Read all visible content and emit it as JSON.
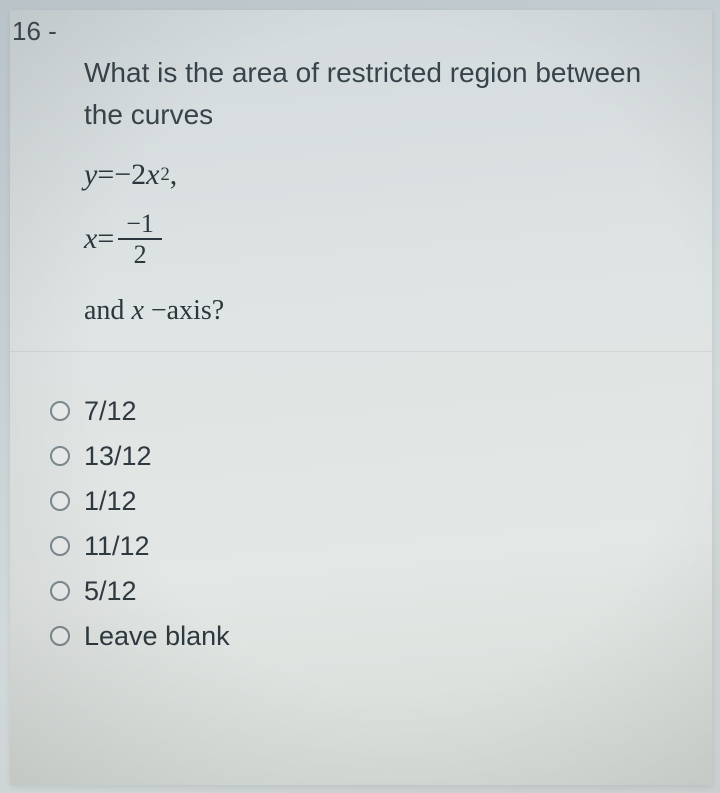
{
  "question_number": "16 -",
  "question_text_line1": "What is the area of restricted region between",
  "question_text_line2": "the curves",
  "eq1_lhs": "y",
  "eq1_eq": " = ",
  "eq1_rhs_coef": "−2",
  "eq1_rhs_var": "x",
  "eq1_rhs_exp": "2",
  "eq1_tail": " ,",
  "eq2_lhs": "x",
  "eq2_eq": " = ",
  "eq2_frac_num": "−1",
  "eq2_frac_den": "2",
  "and_prefix": "and ",
  "and_var": "x ",
  "and_dash": "−",
  "and_suffix": "axis?",
  "options": {
    "a": "7/12",
    "b": "13/12",
    "c": "1/12",
    "d": "11/12",
    "e": "5/12",
    "f": "Leave blank"
  },
  "colors": {
    "text": "#2f3a40",
    "math": "#2c373d",
    "radio_border": "#7d8a90",
    "page_bg_top": "#d3dadc",
    "page_bg_bottom": "#d6dbd7",
    "body_bg": "#c5cfd3"
  },
  "fonts": {
    "body_family": "Arial",
    "math_family": "Cambria Math",
    "question_size_pt": 21,
    "math_size_pt": 22,
    "option_size_pt": 20
  }
}
